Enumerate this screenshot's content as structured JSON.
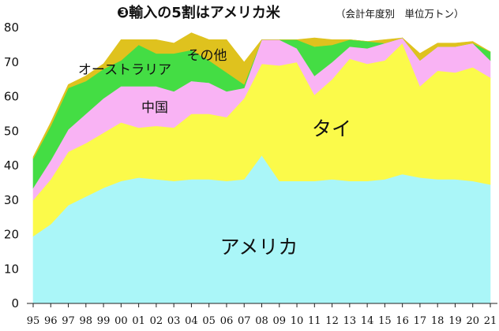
{
  "chart_data": {
    "type": "area",
    "stacked": true,
    "title": "❸輸入の5割はアメリカ米",
    "subtitle": "（会計年度別　単位万トン）",
    "xlabel": "",
    "ylabel": "",
    "ylim": [
      0,
      80
    ],
    "yticks": [
      0,
      10,
      20,
      30,
      40,
      50,
      60,
      70,
      80
    ],
    "grid": false,
    "legend": "in-area labels",
    "categories": [
      "95",
      "96",
      "97",
      "98",
      "99",
      "00",
      "01",
      "02",
      "03",
      "04",
      "05",
      "06",
      "07",
      "08",
      "09",
      "10",
      "11",
      "12",
      "13",
      "14",
      "15",
      "16",
      "17",
      "18",
      "19",
      "20",
      "21"
    ],
    "series": [
      {
        "name": "アメリカ",
        "color": "#aaf6f8",
        "values": [
          19.5,
          23,
          28.5,
          31,
          33.5,
          35.5,
          36.5,
          36,
          35.5,
          36,
          36,
          35.5,
          36,
          43,
          35.5,
          35.5,
          35.5,
          36,
          35.5,
          35.5,
          36,
          37.5,
          36.5,
          36,
          36,
          35.5,
          34.5
        ]
      },
      {
        "name": "タイ",
        "color": "#fbfa4a",
        "values": [
          10.5,
          13,
          15.5,
          15.5,
          16,
          17,
          14.5,
          15.5,
          15.5,
          19,
          19,
          18.5,
          23.5,
          26.5,
          33.5,
          34.5,
          25,
          29,
          35.5,
          34,
          34.5,
          38,
          26.5,
          31.5,
          31,
          33,
          31
        ]
      },
      {
        "name": "中国",
        "color": "#f9b3f4",
        "values": [
          3.5,
          5.5,
          6.5,
          8.5,
          10,
          10.5,
          12,
          11.5,
          10.5,
          9.5,
          9,
          7.5,
          3,
          7,
          7.5,
          4,
          5.5,
          5,
          3.5,
          4.5,
          5,
          1.5,
          7.5,
          7,
          7.5,
          7,
          5
        ]
      },
      {
        "name": "オーストラリア",
        "color": "#44dd44",
        "values": [
          8.5,
          10,
          12,
          9.5,
          8.5,
          7.5,
          12,
          9.5,
          11,
          9,
          6.5,
          5.5,
          1,
          0,
          0,
          2.5,
          8.5,
          5,
          2,
          2,
          0,
          0,
          0,
          0,
          0,
          0,
          2.5
        ]
      },
      {
        "name": "その他",
        "color": "#dfc21e",
        "values": [
          0.5,
          1,
          1,
          1.5,
          1.5,
          6,
          1.5,
          4,
          3,
          5,
          6,
          9.5,
          6.5,
          0,
          0,
          0,
          2.5,
          1.5,
          0,
          0,
          1,
          0,
          2,
          1,
          1,
          0.5,
          0
        ]
      }
    ]
  }
}
